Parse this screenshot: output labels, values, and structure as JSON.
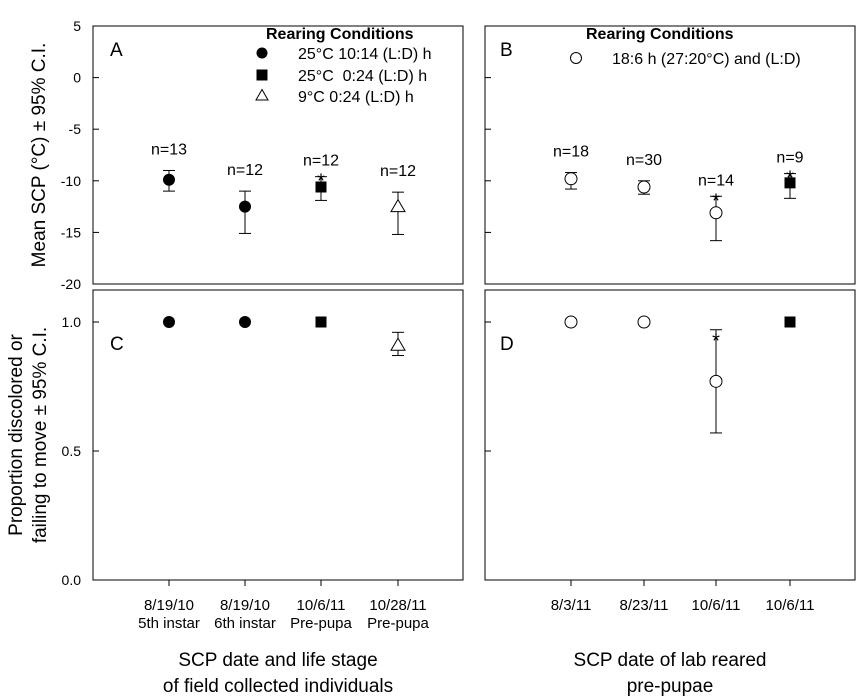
{
  "chart_data": {
    "type": "scatter",
    "y_label_top": "Mean SCP (°C) ± 95% C.I.",
    "y_label_bottom_line1": "Proportion discolored or",
    "y_label_bottom_line2": "failing to move ± 95% C.I.",
    "x_label_left_line1": "SCP date and life stage",
    "x_label_left_line2": "of field collected individuals",
    "x_label_right_line1": "SCP date of lab reared",
    "x_label_right_line2": "pre-pupae",
    "y_ticks_top": [
      "5",
      "0",
      "-5",
      "-10",
      "-15",
      "-20"
    ],
    "y_ticks_bottom": [
      "1.0",
      "0.5",
      "0.0"
    ],
    "ylim_top": [
      -20,
      5
    ],
    "ylim_bottom": [
      0,
      1
    ],
    "categories_left": [
      {
        "date": "8/19/10",
        "stage": "5th instar"
      },
      {
        "date": "8/19/10",
        "stage": "6th instar"
      },
      {
        "date": "10/6/11",
        "stage": "Pre-pupa"
      },
      {
        "date": "10/28/11",
        "stage": "Pre-pupa"
      }
    ],
    "categories_right": [
      {
        "date": "8/3/11"
      },
      {
        "date": "8/23/11"
      },
      {
        "date": "10/6/11"
      },
      {
        "date": "10/6/11"
      }
    ],
    "legend_left": {
      "title": "Rearing Conditions",
      "entries": [
        {
          "marker": "circle-filled",
          "label": "25°C 10:14 (L:D) h"
        },
        {
          "marker": "square-filled",
          "label": "25°C  0:24 (L:D) h"
        },
        {
          "marker": "triangle-open",
          "label": "9°C 0:24 (L:D) h"
        }
      ]
    },
    "legend_right": {
      "title": "Rearing Conditions",
      "entries": [
        {
          "marker": "circle-open",
          "label": "18:6 h (27:20°C) and (L:D)"
        }
      ]
    },
    "panels": [
      {
        "letter": "A",
        "points": [
          {
            "cat": 0,
            "y": -9.9,
            "lo": -11.0,
            "hi": -9.0,
            "marker": "circle-filled",
            "n": "n=13",
            "star": false
          },
          {
            "cat": 1,
            "y": -12.5,
            "lo": -15.1,
            "hi": -11.0,
            "marker": "circle-filled",
            "n": "n=12",
            "star": false
          },
          {
            "cat": 2,
            "y": -10.6,
            "lo": -11.9,
            "hi": -9.6,
            "marker": "square-filled",
            "n": "n=12",
            "star": true
          },
          {
            "cat": 3,
            "y": -12.5,
            "lo": -15.2,
            "hi": -11.1,
            "marker": "triangle-open",
            "n": "n=12",
            "star": false
          }
        ]
      },
      {
        "letter": "B",
        "points": [
          {
            "cat": 0,
            "y": -9.8,
            "lo": -10.8,
            "hi": -9.2,
            "marker": "circle-open",
            "n": "n=18",
            "star": false
          },
          {
            "cat": 1,
            "y": -10.6,
            "lo": -11.3,
            "hi": -10.0,
            "marker": "circle-open",
            "n": "n=30",
            "star": false
          },
          {
            "cat": 2,
            "y": -13.1,
            "lo": -15.8,
            "hi": -11.5,
            "marker": "circle-open",
            "n": "n=14",
            "star": true
          },
          {
            "cat": 3,
            "y": -10.2,
            "lo": -11.7,
            "hi": -9.3,
            "marker": "square-filled",
            "n": "n=9",
            "star": true
          }
        ]
      },
      {
        "letter": "C",
        "points": [
          {
            "cat": 0,
            "y": 1.0,
            "marker": "circle-filled",
            "star": false
          },
          {
            "cat": 1,
            "y": 1.0,
            "marker": "circle-filled",
            "star": false
          },
          {
            "cat": 2,
            "y": 1.0,
            "marker": "square-filled",
            "star": true
          },
          {
            "cat": 3,
            "y": 0.91,
            "lo": 0.87,
            "hi": 0.96,
            "marker": "triangle-open",
            "star": false
          }
        ]
      },
      {
        "letter": "D",
        "points": [
          {
            "cat": 0,
            "y": 1.0,
            "marker": "circle-open",
            "star": false
          },
          {
            "cat": 1,
            "y": 1.0,
            "marker": "circle-open",
            "star": false
          },
          {
            "cat": 2,
            "y": 0.77,
            "lo": 0.57,
            "hi": 0.97,
            "marker": "circle-open",
            "star": true
          },
          {
            "cat": 3,
            "y": 1.0,
            "marker": "square-filled",
            "star": true
          }
        ]
      }
    ],
    "star_symbol": "*"
  }
}
